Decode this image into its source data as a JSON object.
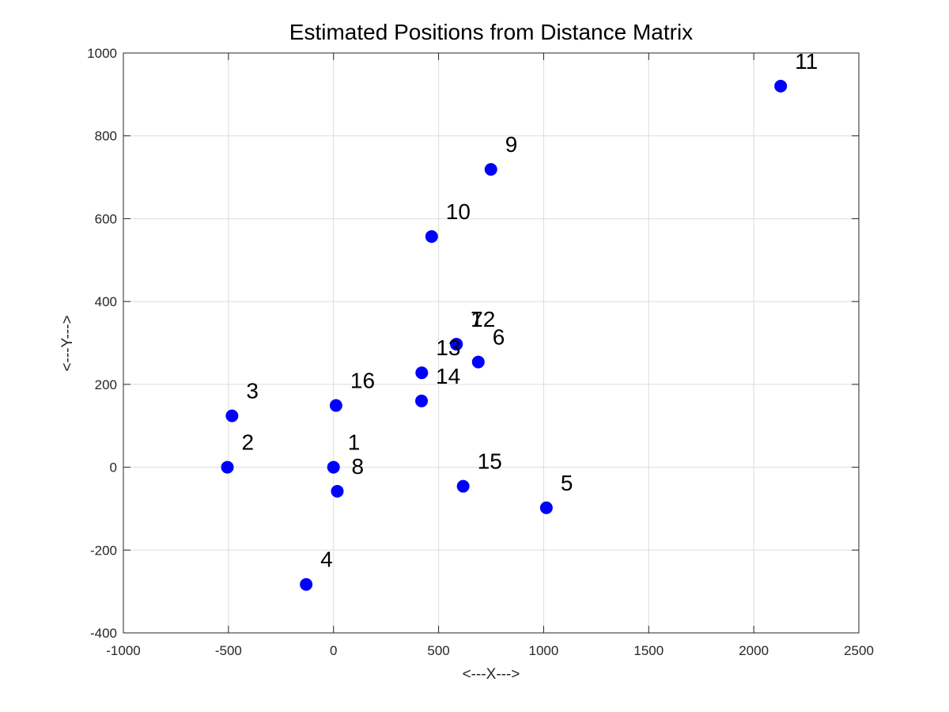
{
  "chart_data": {
    "type": "scatter",
    "title": "Estimated Positions from Distance Matrix",
    "xlabel": "<---X--->",
    "ylabel": "<---Y--->",
    "xlim": [
      -1000,
      2500
    ],
    "ylim": [
      -400,
      1000
    ],
    "xticks": [
      -1000,
      -500,
      0,
      500,
      1000,
      1500,
      2000,
      2500
    ],
    "yticks": [
      -400,
      -200,
      0,
      200,
      400,
      600,
      800,
      1000
    ],
    "grid": true,
    "marker_color": "#0000ff",
    "points": [
      {
        "label": "1",
        "x": 0,
        "y": 0
      },
      {
        "label": "2",
        "x": -505,
        "y": 0
      },
      {
        "label": "3",
        "x": -483,
        "y": 124
      },
      {
        "label": "4",
        "x": -130,
        "y": -283
      },
      {
        "label": "5",
        "x": 1013,
        "y": -98
      },
      {
        "label": "6",
        "x": 689,
        "y": 254
      },
      {
        "label": "7",
        "x": 585,
        "y": 297
      },
      {
        "label": "8",
        "x": 18,
        "y": -58
      },
      {
        "label": "9",
        "x": 749,
        "y": 719
      },
      {
        "label": "10",
        "x": 467,
        "y": 557
      },
      {
        "label": "11",
        "x": 2128,
        "y": 920
      },
      {
        "label": "12",
        "x": 585,
        "y": 297
      },
      {
        "label": "13",
        "x": 420,
        "y": 228
      },
      {
        "label": "14",
        "x": 419,
        "y": 160
      },
      {
        "label": "15",
        "x": 617,
        "y": -46
      },
      {
        "label": "16",
        "x": 12,
        "y": 149
      }
    ]
  }
}
